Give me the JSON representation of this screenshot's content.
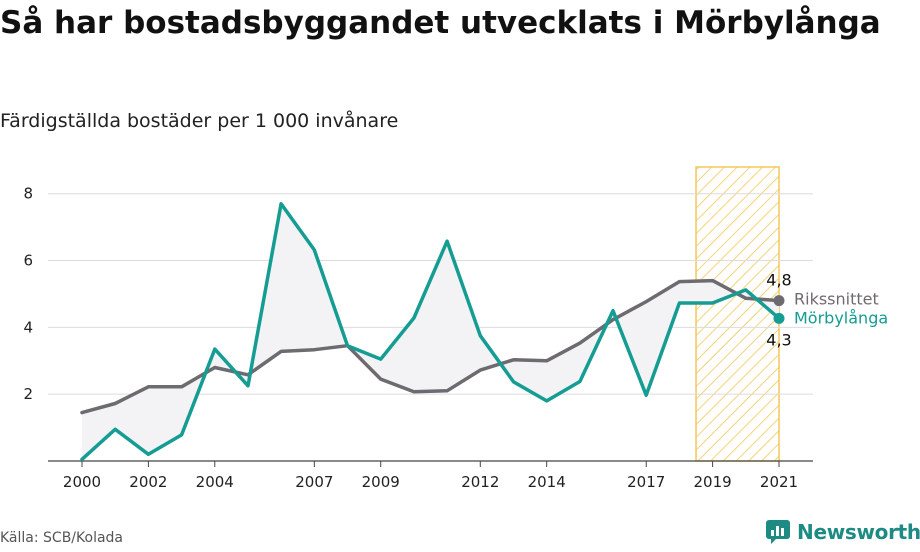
{
  "title": "Så har bostadsbyggandet utvecklats i Mörbylånga",
  "subtitle": "Färdigställda bostäder per 1 000 invånare",
  "source": "Källa: SCB/Kolada",
  "brand": "Newsworthy",
  "colors": {
    "national": "#6d6a70",
    "municipality": "#159c93",
    "highlight": "#f3c85a",
    "fill": "#f3f3f5",
    "grid": "#dcdcdc"
  },
  "chart_data": {
    "type": "line",
    "x": [
      2000,
      2001,
      2002,
      2003,
      2004,
      2005,
      2006,
      2007,
      2008,
      2009,
      2010,
      2011,
      2012,
      2013,
      2014,
      2015,
      2016,
      2017,
      2018,
      2019,
      2020,
      2021
    ],
    "x_ticks": [
      2000,
      2002,
      2004,
      2007,
      2009,
      2012,
      2014,
      2017,
      2019,
      2021
    ],
    "y_ticks": [
      2,
      4,
      6,
      8
    ],
    "xlim": [
      2000,
      2021
    ],
    "ylim": [
      0,
      8.8
    ],
    "grid": true,
    "highlight_range": [
      2018.5,
      2021
    ],
    "series": [
      {
        "name": "Rikssnittet",
        "color": "#6d6a70",
        "values": [
          1.45,
          1.72,
          2.22,
          2.22,
          2.8,
          2.58,
          3.28,
          3.33,
          3.45,
          2.45,
          2.07,
          2.1,
          2.72,
          3.03,
          3.0,
          3.53,
          4.23,
          4.77,
          5.37,
          5.4,
          4.87,
          4.8
        ],
        "end_label": "4,8"
      },
      {
        "name": "Mörbylånga",
        "color": "#159c93",
        "values": [
          0.05,
          0.95,
          0.2,
          0.78,
          3.35,
          2.25,
          7.7,
          6.32,
          3.45,
          3.05,
          4.28,
          6.58,
          3.75,
          2.37,
          1.8,
          2.38,
          4.5,
          1.97,
          4.73,
          4.73,
          5.12,
          4.27
        ],
        "end_label": "4,3"
      }
    ]
  }
}
